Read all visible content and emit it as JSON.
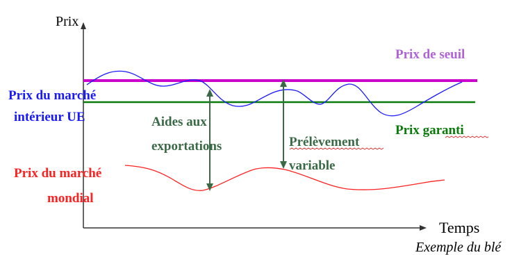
{
  "axes": {
    "y_label": "Prix",
    "x_label": "Temps"
  },
  "labels": {
    "threshold_price": "Prix de seuil",
    "eu_market_price_line1": "Prix du marché",
    "eu_market_price_line2": "intérieur UE",
    "guaranteed_price": "Prix garanti",
    "export_aid_line1": "Aides aux",
    "export_aid_line2": "exportations",
    "variable_levy_line1": "Prélèvement",
    "variable_levy_line2": "variable",
    "world_market_price_line1": "Prix du marché",
    "world_market_price_line2": "mondial",
    "caption": "Exemple du blé"
  },
  "colors": {
    "threshold": "#cc00cc",
    "threshold_text": "#b063d6",
    "eu_market": "#1a1aff",
    "guaranteed": "#0a7a0a",
    "world_market": "#ff2020",
    "arrows": "#3a6a45",
    "axis": "#333333"
  }
}
